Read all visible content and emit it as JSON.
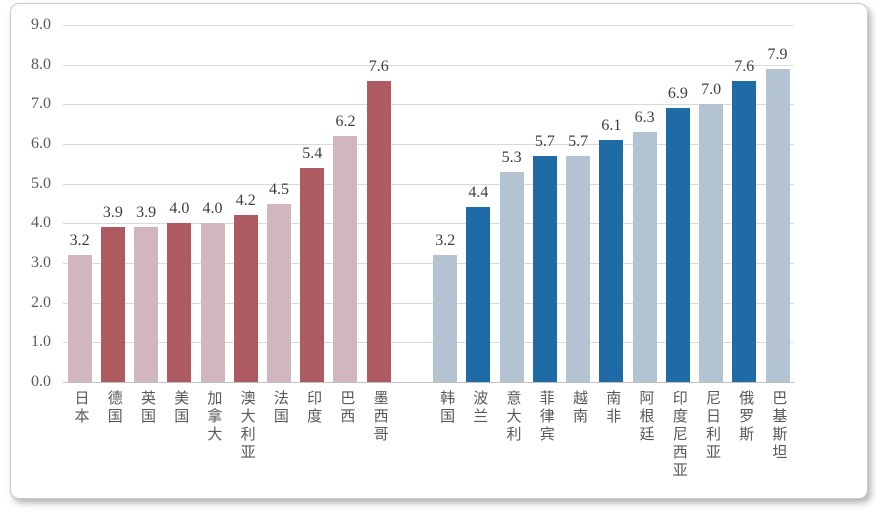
{
  "chart_data": {
    "type": "bar",
    "title": "",
    "xlabel": "",
    "ylabel": "",
    "ylim": [
      0,
      9
    ],
    "ytick_step": 1.0,
    "ytick_labels": [
      "9.0",
      "8.0",
      "7.0",
      "6.0",
      "5.0",
      "4.0",
      "3.0",
      "2.0",
      "1.0",
      "0.0"
    ],
    "grid": true,
    "legend": null,
    "value_labels_shown": true,
    "groups": [
      {
        "name": "developed-and-americas-red-group",
        "palette": {
          "light": "#d1b6bd",
          "dark": "#ae5a61"
        },
        "categories": [
          "日本",
          "德国",
          "英国",
          "美国",
          "加拿大",
          "澳大利亚",
          "法国",
          "印度",
          "巴西",
          "墨西哥"
        ],
        "values": [
          3.2,
          3.9,
          3.9,
          4.0,
          4.0,
          4.2,
          4.5,
          5.4,
          6.2,
          7.6
        ],
        "value_labels": [
          "3.2",
          "3.9",
          "3.9",
          "4.0",
          "4.0",
          "4.2",
          "4.5",
          "5.4",
          "6.2",
          "7.6"
        ],
        "shades": [
          "light",
          "dark",
          "light",
          "dark",
          "light",
          "dark",
          "light",
          "dark",
          "light",
          "dark"
        ]
      },
      {
        "name": "emerging-blue-group",
        "palette": {
          "light": "#b4c3d1",
          "dark": "#1e6ba6"
        },
        "categories": [
          "韩国",
          "波兰",
          "意大利",
          "菲律宾",
          "越南",
          "南非",
          "阿根廷",
          "印度尼西亚",
          "尼日利亚",
          "俄罗斯",
          "巴基斯坦"
        ],
        "values": [
          3.2,
          4.4,
          5.3,
          5.7,
          5.7,
          6.1,
          6.3,
          6.9,
          7.0,
          7.6,
          7.9
        ],
        "value_labels": [
          "3.2",
          "4.4",
          "5.3",
          "5.7",
          "5.7",
          "6.1",
          "6.3",
          "6.9",
          "7.0",
          "7.6",
          "7.9"
        ],
        "shades": [
          "light",
          "dark",
          "light",
          "dark",
          "light",
          "dark",
          "light",
          "dark",
          "light",
          "dark",
          "light"
        ]
      }
    ],
    "group_gap_slots": 1,
    "colors": {
      "gridline": "#d9d9d9",
      "baseline": "#c2c2c2",
      "tick_text": "#595959",
      "value_text": "#3d3d3d",
      "category_text": "#595959",
      "card_border": "#c9c9c9",
      "background": "#ffffff"
    }
  }
}
